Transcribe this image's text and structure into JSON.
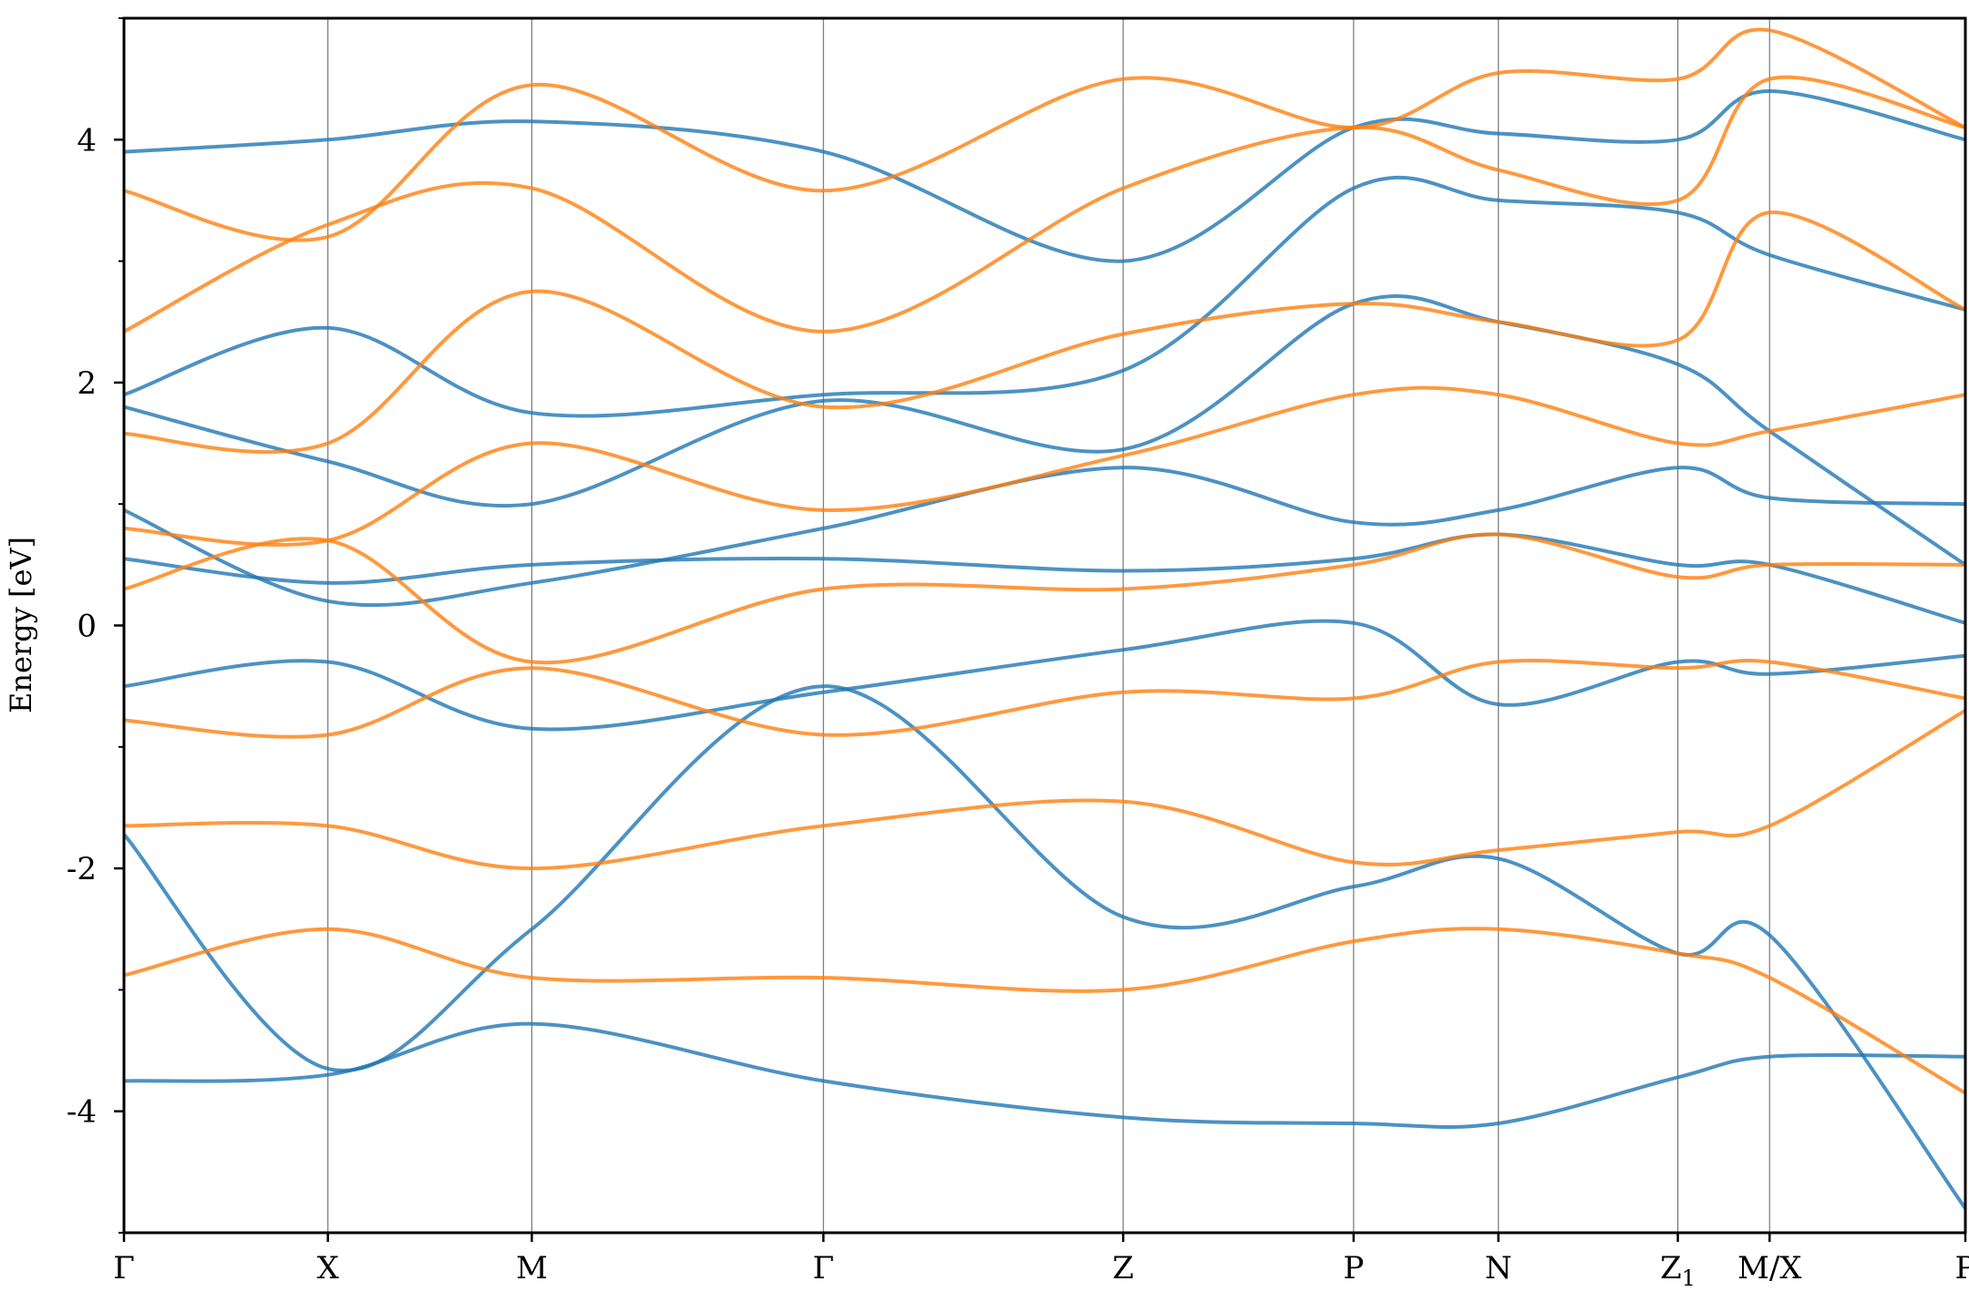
{
  "chart_data": {
    "type": "line",
    "title": "",
    "xlabel": "",
    "ylabel": "Energy [eV]",
    "ylim": [
      -5,
      5
    ],
    "yticks": [
      {
        "value": 4,
        "label": "4"
      },
      {
        "value": 2,
        "label": "2"
      },
      {
        "value": 0,
        "label": "0"
      },
      {
        "value": -2,
        "label": "-2"
      },
      {
        "value": -4,
        "label": "-4"
      }
    ],
    "yminor_ticks": [
      5,
      3,
      1,
      -1,
      -3,
      -5
    ],
    "grid": "vertical lines at high-symmetry points",
    "legend": "none",
    "kpath": [
      {
        "label": "Γ",
        "sub": "",
        "x": 0.0
      },
      {
        "label": "X",
        "sub": "",
        "x": 1.0
      },
      {
        "label": "M",
        "sub": "",
        "x": 2.0
      },
      {
        "label": "Γ",
        "sub": "",
        "x": 3.43
      },
      {
        "label": "Z",
        "sub": "",
        "x": 4.9
      },
      {
        "label": "P",
        "sub": "",
        "x": 6.03
      },
      {
        "label": "N",
        "sub": "",
        "x": 6.74
      },
      {
        "label": "Z",
        "sub": "1",
        "x": 7.62
      },
      {
        "label": "M/X",
        "sub": "",
        "x": 8.07
      },
      {
        "label": "P",
        "sub": "",
        "x": 9.03
      }
    ],
    "series_colors": {
      "spin_up": "#1f77b4",
      "spin_down": "#ff7f0e"
    },
    "series": [
      {
        "color": "#1f77b4",
        "bands": [
          [
            -3.75,
            -3.7,
            -3.28,
            -3.75,
            -4.05,
            -4.1,
            -4.1,
            -3.72,
            -3.55,
            -3.55
          ],
          [
            -1.72,
            -3.65,
            -2.5,
            -0.5,
            -2.4,
            -2.15,
            -1.92,
            -2.7,
            -2.55,
            -4.8
          ],
          [
            -0.5,
            -0.3,
            -0.85,
            -0.55,
            -0.2,
            0.02,
            -0.65,
            -0.3,
            -0.4,
            -0.25
          ],
          [
            0.55,
            0.35,
            0.5,
            0.55,
            0.45,
            0.55,
            0.75,
            0.5,
            0.5,
            0.02
          ],
          [
            0.95,
            0.2,
            0.35,
            0.8,
            1.3,
            0.85,
            0.95,
            1.3,
            1.05,
            1.0
          ],
          [
            1.8,
            1.35,
            1.0,
            1.85,
            1.45,
            2.65,
            2.5,
            2.15,
            1.6,
            0.5
          ],
          [
            1.9,
            2.45,
            1.75,
            1.9,
            2.1,
            3.6,
            3.5,
            3.4,
            3.05,
            2.6
          ],
          [
            3.9,
            4.0,
            4.15,
            3.9,
            3.0,
            4.1,
            4.05,
            4.0,
            4.4,
            4.0
          ]
        ]
      },
      {
        "color": "#ff7f0e",
        "bands": [
          [
            -2.88,
            -2.5,
            -2.9,
            -2.9,
            -3.0,
            -2.6,
            -2.5,
            -2.7,
            -2.9,
            -3.85
          ],
          [
            -1.65,
            -1.65,
            -2.0,
            -1.65,
            -1.45,
            -1.95,
            -1.85,
            -1.7,
            -1.65,
            -0.7
          ],
          [
            -0.78,
            -0.9,
            -0.35,
            -0.9,
            -0.55,
            -0.6,
            -0.3,
            -0.35,
            -0.3,
            -0.6
          ],
          [
            0.3,
            0.7,
            -0.3,
            0.3,
            0.3,
            0.5,
            0.75,
            0.4,
            0.5,
            0.5
          ],
          [
            0.8,
            0.7,
            1.5,
            0.95,
            1.4,
            1.9,
            1.9,
            1.5,
            1.6,
            1.9
          ],
          [
            1.58,
            1.5,
            2.75,
            1.8,
            2.4,
            2.65,
            2.5,
            2.35,
            3.4,
            2.6
          ],
          [
            2.42,
            3.3,
            3.6,
            2.42,
            3.6,
            4.1,
            3.75,
            3.5,
            4.5,
            4.1
          ],
          [
            3.58,
            3.2,
            4.45,
            3.58,
            4.5,
            4.1,
            4.55,
            4.5,
            4.9,
            4.1
          ]
        ]
      }
    ]
  }
}
